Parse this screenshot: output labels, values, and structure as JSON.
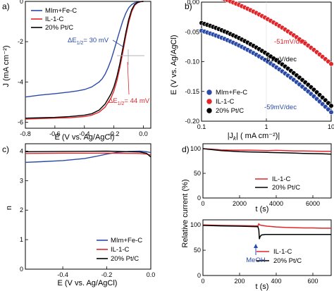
{
  "colors": {
    "blue": "#2b4aa6",
    "red": "#e0262a",
    "black": "#000000",
    "gray": "#b4b4b4"
  },
  "chart_data": [
    {
      "panel": "a)",
      "type": "line",
      "xlabel": "E (V vs. Ag/AgCl)",
      "ylabel": "J (mA cm⁻²)",
      "xlim": [
        -0.8,
        0.05
      ],
      "ylim": [
        -6.3,
        0
      ],
      "xticks": [
        -0.8,
        -0.6,
        -0.4,
        -0.2,
        0.0
      ],
      "xtick_labels": [
        "-0.8",
        "-0.6",
        "-0.4",
        "-0.2",
        "0.0"
      ],
      "yticks": [
        0,
        -2,
        -4,
        -6
      ],
      "ytick_labels": [
        "0",
        "-2",
        "-4",
        "-6"
      ],
      "legend_position": "top-left",
      "series": [
        {
          "name": "MIm+Fe-C",
          "color_key": "blue",
          "x": [
            -0.8,
            -0.7,
            -0.6,
            -0.5,
            -0.45,
            -0.4,
            -0.35,
            -0.3,
            -0.28,
            -0.26,
            -0.24,
            -0.22,
            -0.2,
            -0.18,
            -0.16,
            -0.14,
            -0.12,
            -0.1,
            -0.08,
            -0.06,
            -0.04,
            -0.02,
            0.0
          ],
          "y": [
            -4.75,
            -4.65,
            -4.58,
            -4.5,
            -4.45,
            -4.38,
            -4.25,
            -4.0,
            -3.85,
            -3.62,
            -3.3,
            -2.92,
            -2.45,
            -1.95,
            -1.45,
            -0.98,
            -0.6,
            -0.32,
            -0.16,
            -0.07,
            -0.03,
            -0.01,
            0.0
          ]
        },
        {
          "name": "IL-1-C",
          "color_key": "red",
          "x": [
            -0.8,
            -0.7,
            -0.6,
            -0.5,
            -0.4,
            -0.35,
            -0.3,
            -0.26,
            -0.22,
            -0.2,
            -0.18,
            -0.16,
            -0.14,
            -0.12,
            -0.1,
            -0.08,
            -0.06,
            -0.04,
            -0.02,
            0.0
          ],
          "y": [
            -5.85,
            -5.82,
            -5.8,
            -5.78,
            -5.72,
            -5.65,
            -5.5,
            -5.25,
            -4.8,
            -4.45,
            -3.95,
            -3.3,
            -2.55,
            -1.75,
            -1.05,
            -0.52,
            -0.2,
            -0.07,
            -0.02,
            0.0
          ]
        },
        {
          "name": "20% Pt/C",
          "color_key": "black",
          "x": [
            -0.8,
            -0.7,
            -0.6,
            -0.5,
            -0.4,
            -0.35,
            -0.3,
            -0.26,
            -0.22,
            -0.2,
            -0.18,
            -0.16,
            -0.14,
            -0.12,
            -0.1,
            -0.08,
            -0.06,
            -0.04,
            -0.02,
            0.0
          ],
          "y": [
            -5.8,
            -5.78,
            -5.76,
            -5.72,
            -5.65,
            -5.58,
            -5.4,
            -5.1,
            -4.6,
            -4.25,
            -3.75,
            -3.1,
            -2.35,
            -1.58,
            -0.9,
            -0.42,
            -0.15,
            -0.05,
            -0.01,
            0.0
          ]
        }
      ],
      "annotations": [
        {
          "text": "ΔE",
          "sub": "1/2",
          "suffix": "= 30 mV",
          "color_key": "blue"
        },
        {
          "text": "ΔE",
          "sub": "1/2",
          "suffix": "= 44 mV",
          "color_key": "red"
        }
      ]
    },
    {
      "panel": "b)",
      "type": "scatter",
      "xlabel_prefix": "|J",
      "xlabel_sub": "k",
      "xlabel_suffix": "| ( mA cm⁻²)|",
      "ylabel": "E (V vs. Ag/AgCl)",
      "xscale": "log",
      "xlim": [
        0.1,
        10
      ],
      "ylim": [
        -0.2,
        0.0
      ],
      "xticks": [
        0.1,
        1,
        10
      ],
      "xtick_labels": [
        "0.1",
        "1",
        "10"
      ],
      "yticks": [
        0.0,
        -0.05,
        -0.1,
        -0.15,
        -0.2
      ],
      "ytick_labels": [
        "0.00",
        "-0.05",
        "-0.10",
        "-0.15",
        "-0.20"
      ],
      "legend_position": "bottom-left",
      "series": [
        {
          "name": "MIm+Fe-C",
          "color_key": "blue",
          "x_range": [
            0.1,
            10
          ],
          "y_start": -0.048,
          "curve": -0.02,
          "slope_label": "-59mV/dec",
          "slope": -0.059
        },
        {
          "name": "IL-1-C",
          "color_key": "red",
          "x_range": [
            0.1,
            10
          ],
          "y_start": 0.017,
          "curve": -0.018,
          "slope_label": "-51mV/dec",
          "slope": -0.051
        },
        {
          "name": "20% Pt/C",
          "color_key": "black",
          "x_range": [
            0.1,
            10
          ],
          "y_start": -0.035,
          "curve": -0.02,
          "slope_label": "-61mV/dec",
          "slope": -0.061
        }
      ]
    },
    {
      "panel": "c)",
      "type": "line",
      "xlabel": "E (V vs. Ag/AgCl)",
      "ylabel": "n",
      "xlim": [
        -0.57,
        0.0
      ],
      "ylim": [
        0,
        4.25
      ],
      "xticks": [
        -0.4,
        -0.2,
        0.0
      ],
      "xtick_labels": [
        "-0.4",
        "-0.2",
        "0.0"
      ],
      "yticks": [
        0,
        1,
        2,
        3,
        4
      ],
      "ytick_labels": [
        "0",
        "1",
        "2",
        "3",
        "4"
      ],
      "legend_position": "bottom-right",
      "series": [
        {
          "name": "MIm+Fe-C",
          "color_key": "blue",
          "x": [
            -0.57,
            -0.5,
            -0.4,
            -0.3,
            -0.25,
            -0.2,
            -0.15,
            -0.1,
            -0.05,
            -0.02,
            0.0
          ],
          "y": [
            3.62,
            3.64,
            3.68,
            3.75,
            3.82,
            3.9,
            3.96,
            3.99,
            4.0,
            3.98,
            3.95
          ]
        },
        {
          "name": "IL-1-C",
          "color_key": "red",
          "x": [
            -0.57,
            -0.4,
            -0.2,
            -0.05,
            -0.02,
            0.0
          ],
          "y": [
            3.92,
            3.93,
            3.93,
            3.92,
            3.9,
            3.87
          ]
        },
        {
          "name": "20% Pt/C",
          "color_key": "black",
          "x": [
            -0.57,
            -0.4,
            -0.2,
            -0.05,
            -0.02,
            0.0
          ],
          "y": [
            3.98,
            3.99,
            4.0,
            3.97,
            3.93,
            3.8
          ]
        }
      ]
    },
    {
      "panel": "d)",
      "type": "line",
      "ylabel": "Relative current (%)",
      "subplots": [
        {
          "xlabel": "t (s)",
          "xlim": [
            0,
            7000
          ],
          "ylim": [
            0,
            110
          ],
          "xticks": [
            0,
            2000,
            4000,
            6000
          ],
          "xtick_labels": [
            "0",
            "2000",
            "4000",
            "6000"
          ],
          "yticks": [
            0,
            50,
            100
          ],
          "ytick_labels": [
            "0",
            "50",
            "100"
          ],
          "legend_position": "bottom-right",
          "series": [
            {
              "name": "IL-1-C",
              "color_key": "red",
              "x": [
                0,
                500,
                1000,
                1500,
                2000,
                2500,
                3000,
                3500,
                4000,
                4500,
                5000,
                5500,
                6000,
                6500,
                7000
              ],
              "y": [
                100,
                99,
                97.5,
                97,
                97,
                97,
                96.5,
                96,
                96.5,
                96,
                95.5,
                95.5,
                95,
                94.5,
                94.5
              ]
            },
            {
              "name": "20% Pt/C",
              "color_key": "black",
              "x": [
                0,
                500,
                1000,
                1500,
                2000,
                2500,
                3000,
                3500,
                4000,
                4500,
                5000,
                5500,
                6000,
                6500,
                7000
              ],
              "y": [
                100,
                98,
                96,
                95,
                94,
                93.5,
                93,
                92.5,
                92,
                91.5,
                91,
                90.5,
                90,
                89.5,
                89
              ]
            }
          ]
        },
        {
          "xlabel": "t (s)",
          "xlim": [
            0,
            700
          ],
          "ylim": [
            0,
            110
          ],
          "xticks": [
            0,
            200,
            400,
            600
          ],
          "xtick_labels": [
            "0",
            "200",
            "400",
            "600"
          ],
          "yticks": [
            0,
            50,
            100
          ],
          "ytick_labels": [
            "0",
            "50",
            "100"
          ],
          "legend_position": "bottom-right",
          "annotation": {
            "text": "MeOH",
            "x": 310,
            "color_key": "blue"
          },
          "series": [
            {
              "name": "IL-1-C",
              "color_key": "red",
              "x": [
                0,
                100,
                200,
                300,
                305,
                310,
                320,
                350,
                400,
                450,
                500,
                550,
                600,
                650,
                700
              ],
              "y": [
                100,
                99,
                98.5,
                98,
                102,
                100,
                99,
                97.5,
                96,
                95,
                94.5,
                94,
                94,
                93.5,
                93.5
              ]
            },
            {
              "name": "20% Pt/C",
              "color_key": "black",
              "x": [
                0,
                100,
                200,
                300,
                305,
                308,
                312,
                320,
                340,
                380,
                450,
                550,
                650,
                700
              ],
              "y": [
                99,
                98,
                97.5,
                96.5,
                90,
                72,
                77,
                80,
                81,
                81,
                81,
                81,
                81,
                81
              ]
            }
          ]
        }
      ]
    }
  ]
}
